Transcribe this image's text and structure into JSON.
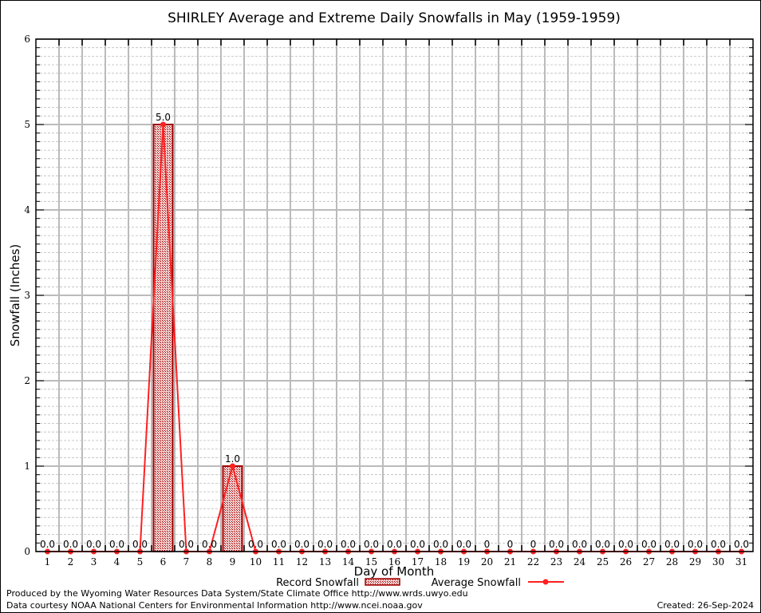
{
  "chart_data": {
    "type": "bar",
    "title": "SHIRLEY Average and Extreme Daily Snowfalls in May (1959-1959)",
    "xlabel": "Day of Month",
    "ylabel": "Snowfall (Inches)",
    "ylim": [
      0,
      6
    ],
    "yticks": [
      0,
      1,
      2,
      3,
      4,
      5,
      6
    ],
    "grid": true,
    "categories": [
      1,
      2,
      3,
      4,
      5,
      6,
      7,
      8,
      9,
      10,
      11,
      12,
      13,
      14,
      15,
      16,
      17,
      18,
      19,
      20,
      21,
      22,
      23,
      24,
      25,
      26,
      27,
      28,
      29,
      30,
      31
    ],
    "series": [
      {
        "name": "Record Snowfall",
        "kind": "bar",
        "color": "#a00000",
        "values": [
          0,
          0,
          0,
          0,
          0,
          5.0,
          0,
          0,
          1.0,
          0,
          0,
          0,
          0,
          0,
          0,
          0,
          0,
          0,
          0,
          0,
          0,
          0,
          0,
          0,
          0,
          0,
          0,
          0,
          0,
          0,
          0
        ]
      },
      {
        "name": "Average Snowfall",
        "kind": "line",
        "color": "#ff2020",
        "values": [
          0,
          0,
          0,
          0,
          0,
          5.0,
          0,
          0,
          1.0,
          0,
          0,
          0,
          0,
          0,
          0,
          0,
          0,
          0,
          0,
          0,
          0,
          0,
          0,
          0,
          0,
          0,
          0,
          0,
          0,
          0,
          0
        ]
      }
    ],
    "data_labels": [
      "0.0",
      "0.0",
      "0.0",
      "0.0",
      "0.0",
      "5.0",
      "0.0",
      "0.0",
      "1.0",
      "0.0",
      "0.0",
      "0.0",
      "0.0",
      "0.0",
      "0.0",
      "0.0",
      "0.0",
      "0.0",
      "0.0",
      "0",
      "0",
      "0",
      "0.0",
      "0.0",
      "0.0",
      "0.0",
      "0.0",
      "0.0",
      "0.0",
      "0.0",
      "0.0"
    ],
    "legend": "bottom"
  },
  "footer": {
    "produced": "Produced by the Wyoming Water Resources Data System/State Climate Office http://www.wrds.uwyo.edu",
    "courtesy": "Data courtesy NOAA National Centers for Environmental Information http://www.ncei.noaa.gov",
    "created": "Created: 26-Sep-2024"
  }
}
